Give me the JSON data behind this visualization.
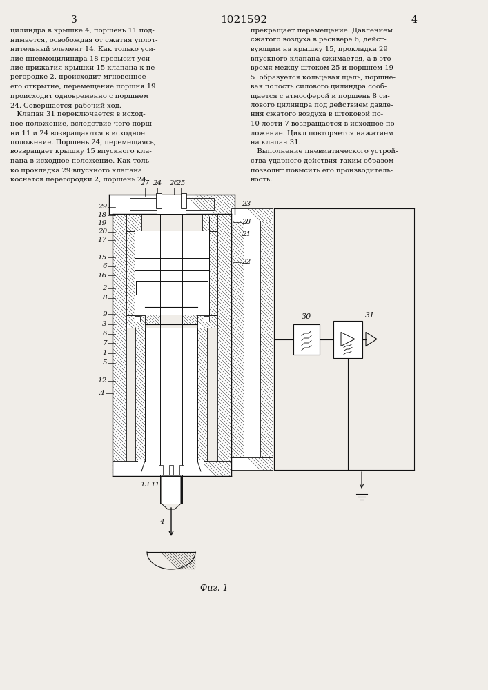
{
  "page_number_left": "3",
  "page_number_right": "4",
  "patent_number": "1021592",
  "fig_caption": "Фиг. 1",
  "bg_color": "#f0ede8",
  "line_color": "#111111",
  "text_color": "#111111",
  "text_col1_lines": [
    "цилиндра в крышке 4, поршень 11 под-",
    "нимается, освобождая от сжатия уплот-",
    "нительный элемент 14. Как только уси-",
    "лие пневмоцилиндра 18 превысит уси-",
    "лие прижатия крышки 15 клапана к пе-",
    "регородке 2, происходит мгновенное",
    "его открытие, перемещение поршня 19",
    "происходит одновременно с поршнем",
    "24. Совершается рабочий ход.",
    "   Клапан 31 переключается в исход-",
    "ное положение, вследствие чего порш-",
    "ни 11 и 24 возвращаются в исходное",
    "положение. Поршень 24, перемещаясь,",
    "возвращает крышку 15 впускного кла-",
    "пана в исходное положение. Как толь-",
    "ко прокладка 29·впускного клапана",
    "коснется перегородки 2, поршень 24"
  ],
  "text_col2_lines": [
    "прекращает перемещение. Давлением",
    "сжатого воздуха в ресивере 6, дейст-",
    "вующим на крышку 15, прокладка 29",
    "впускного клапана сжимается, а в это",
    "время между штоком 25 и поршнем 19",
    "5  образуется кольцевая щель, поршне-",
    "вая полость силового цилиндра сооб-",
    "щается с атмосферой и поршень 8 си-",
    "лового цилиндра под действием давле-",
    "ния сжатого воздуха в штоковой по-",
    "10 лости 7 возвращается в исходное по-",
    "ложение. Цикл повторяется нажатием",
    "на клапан 31.",
    "   Выполнение пневматического устрой-",
    "ства ударного действия таким образом",
    "позволит повысить его производитель-",
    "ность."
  ]
}
